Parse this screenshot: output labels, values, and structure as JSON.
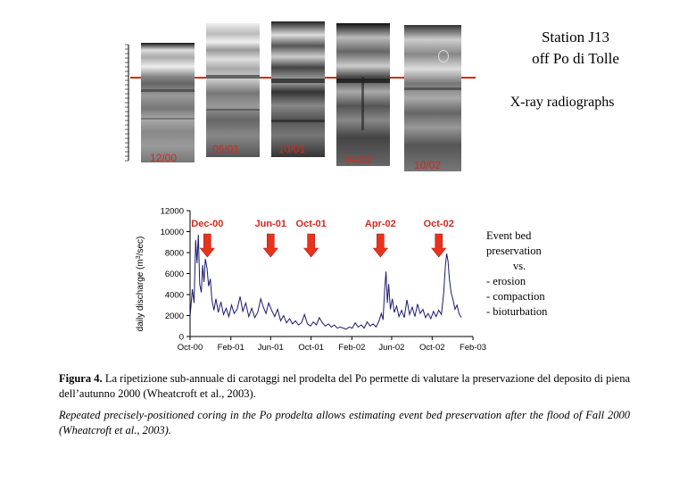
{
  "station": {
    "line1": "Station J13",
    "line2": "off Po di Tolle"
  },
  "xray_title": "X-ray radiographs",
  "cores": [
    {
      "label": "12/00"
    },
    {
      "label": "06/01"
    },
    {
      "label": "10/01"
    },
    {
      "label": "04/02"
    },
    {
      "label": "10/02"
    }
  ],
  "event_note": {
    "lines": [
      "Event bed",
      "preservation",
      "vs.",
      "- erosion",
      "- compaction",
      "- bioturbation"
    ]
  },
  "caption": {
    "bold_prefix": "Figura 4.",
    "italian": "La ripetizione sub-annuale di carotaggi nel prodelta del Po permette di valutare la preservazione del deposito di piena dell’autunno 2000 (Wheatcroft et al., 2003).",
    "english": "Repeated precisely-positioned coring in the Po prodelta allows estimating event bed preservation after the flood of Fall 2000 (Wheatcroft et al., 2003)."
  },
  "colors": {
    "series": "#1a1a6e",
    "arrow": "#e8321e",
    "label_red": "#d42a1f",
    "core_line": "#d42a1f"
  },
  "chart_data": {
    "type": "line",
    "ylabel": "daily discharge (m3/sec)",
    "ylabel_base": "daily discharge (m",
    "ylabel_sup": "3",
    "ylabel_tail": "/sec)",
    "ylim": [
      0,
      12000
    ],
    "yticks": [
      0,
      2000,
      4000,
      6000,
      8000,
      10000,
      12000
    ],
    "xlim": [
      "2000-10-01",
      "2003-02-01"
    ],
    "xticks": [
      {
        "date": "2000-10-01",
        "label": "Oct-00"
      },
      {
        "date": "2001-02-01",
        "label": "Feb-01"
      },
      {
        "date": "2001-06-01",
        "label": "Jun-01"
      },
      {
        "date": "2001-10-01",
        "label": "Oct-01"
      },
      {
        "date": "2002-02-01",
        "label": "Feb-02"
      },
      {
        "date": "2002-06-01",
        "label": "Jun-02"
      },
      {
        "date": "2002-10-01",
        "label": "Oct-02"
      },
      {
        "date": "2003-02-01",
        "label": "Feb-03"
      }
    ],
    "grid": false,
    "series": [
      {
        "values": [
          {
            "x": "2000-10-01",
            "y": 1900
          },
          {
            "x": "2000-10-08",
            "y": 4500
          },
          {
            "x": "2000-10-13",
            "y": 3200
          },
          {
            "x": "2000-10-18",
            "y": 9200
          },
          {
            "x": "2000-10-22",
            "y": 7000
          },
          {
            "x": "2000-10-26",
            "y": 9700
          },
          {
            "x": "2000-10-30",
            "y": 5000
          },
          {
            "x": "2000-11-04",
            "y": 4200
          },
          {
            "x": "2000-11-08",
            "y": 6800
          },
          {
            "x": "2000-11-12",
            "y": 5200
          },
          {
            "x": "2000-11-16",
            "y": 7400
          },
          {
            "x": "2000-11-21",
            "y": 6500
          },
          {
            "x": "2000-11-26",
            "y": 4800
          },
          {
            "x": "2000-12-01",
            "y": 5500
          },
          {
            "x": "2000-12-06",
            "y": 3500
          },
          {
            "x": "2000-12-12",
            "y": 2500
          },
          {
            "x": "2000-12-18",
            "y": 3600
          },
          {
            "x": "2000-12-25",
            "y": 2300
          },
          {
            "x": "2001-01-02",
            "y": 3300
          },
          {
            "x": "2001-01-10",
            "y": 2100
          },
          {
            "x": "2001-01-18",
            "y": 2700
          },
          {
            "x": "2001-01-26",
            "y": 1900
          },
          {
            "x": "2001-02-03",
            "y": 3000
          },
          {
            "x": "2001-02-11",
            "y": 2200
          },
          {
            "x": "2001-02-20",
            "y": 2600
          },
          {
            "x": "2001-03-01",
            "y": 3800
          },
          {
            "x": "2001-03-09",
            "y": 2400
          },
          {
            "x": "2001-03-18",
            "y": 3200
          },
          {
            "x": "2001-03-27",
            "y": 1900
          },
          {
            "x": "2001-04-05",
            "y": 2700
          },
          {
            "x": "2001-04-14",
            "y": 1800
          },
          {
            "x": "2001-04-23",
            "y": 2300
          },
          {
            "x": "2001-05-02",
            "y": 3600
          },
          {
            "x": "2001-05-10",
            "y": 2800
          },
          {
            "x": "2001-05-18",
            "y": 2200
          },
          {
            "x": "2001-05-26",
            "y": 3200
          },
          {
            "x": "2001-06-04",
            "y": 2500
          },
          {
            "x": "2001-06-13",
            "y": 1900
          },
          {
            "x": "2001-06-22",
            "y": 2600
          },
          {
            "x": "2001-07-01",
            "y": 1500
          },
          {
            "x": "2001-07-10",
            "y": 2000
          },
          {
            "x": "2001-07-19",
            "y": 1300
          },
          {
            "x": "2001-07-28",
            "y": 1700
          },
          {
            "x": "2001-08-06",
            "y": 1200
          },
          {
            "x": "2001-08-15",
            "y": 1500
          },
          {
            "x": "2001-08-24",
            "y": 1100
          },
          {
            "x": "2001-09-02",
            "y": 1300
          },
          {
            "x": "2001-09-11",
            "y": 2100
          },
          {
            "x": "2001-09-20",
            "y": 1200
          },
          {
            "x": "2001-09-29",
            "y": 1000
          },
          {
            "x": "2001-10-08",
            "y": 1400
          },
          {
            "x": "2001-10-17",
            "y": 1100
          },
          {
            "x": "2001-10-26",
            "y": 1800
          },
          {
            "x": "2001-11-04",
            "y": 1300
          },
          {
            "x": "2001-11-13",
            "y": 1000
          },
          {
            "x": "2001-11-22",
            "y": 1200
          },
          {
            "x": "2001-12-01",
            "y": 900
          },
          {
            "x": "2001-12-10",
            "y": 1100
          },
          {
            "x": "2001-12-19",
            "y": 800
          },
          {
            "x": "2001-12-28",
            "y": 900
          },
          {
            "x": "2002-01-06",
            "y": 800
          },
          {
            "x": "2002-01-15",
            "y": 700
          },
          {
            "x": "2002-01-24",
            "y": 900
          },
          {
            "x": "2002-02-02",
            "y": 800
          },
          {
            "x": "2002-02-11",
            "y": 1300
          },
          {
            "x": "2002-02-20",
            "y": 900
          },
          {
            "x": "2002-03-01",
            "y": 1100
          },
          {
            "x": "2002-03-10",
            "y": 800
          },
          {
            "x": "2002-03-19",
            "y": 1400
          },
          {
            "x": "2002-03-28",
            "y": 1000
          },
          {
            "x": "2002-04-06",
            "y": 1200
          },
          {
            "x": "2002-04-15",
            "y": 900
          },
          {
            "x": "2002-04-24",
            "y": 1500
          },
          {
            "x": "2002-05-01",
            "y": 2200
          },
          {
            "x": "2002-05-06",
            "y": 1600
          },
          {
            "x": "2002-05-11",
            "y": 4500
          },
          {
            "x": "2002-05-15",
            "y": 6200
          },
          {
            "x": "2002-05-19",
            "y": 3200
          },
          {
            "x": "2002-05-23",
            "y": 5000
          },
          {
            "x": "2002-05-28",
            "y": 2600
          },
          {
            "x": "2002-06-03",
            "y": 3600
          },
          {
            "x": "2002-06-09",
            "y": 2300
          },
          {
            "x": "2002-06-16",
            "y": 2900
          },
          {
            "x": "2002-06-23",
            "y": 1900
          },
          {
            "x": "2002-07-01",
            "y": 2500
          },
          {
            "x": "2002-07-09",
            "y": 1800
          },
          {
            "x": "2002-07-17",
            "y": 3500
          },
          {
            "x": "2002-07-25",
            "y": 2100
          },
          {
            "x": "2002-08-02",
            "y": 2800
          },
          {
            "x": "2002-08-10",
            "y": 1900
          },
          {
            "x": "2002-08-18",
            "y": 3100
          },
          {
            "x": "2002-08-26",
            "y": 2200
          },
          {
            "x": "2002-09-03",
            "y": 2600
          },
          {
            "x": "2002-09-11",
            "y": 1800
          },
          {
            "x": "2002-09-19",
            "y": 2200
          },
          {
            "x": "2002-09-27",
            "y": 1700
          },
          {
            "x": "2002-10-05",
            "y": 2400
          },
          {
            "x": "2002-10-13",
            "y": 1900
          },
          {
            "x": "2002-10-21",
            "y": 2500
          },
          {
            "x": "2002-10-29",
            "y": 2100
          },
          {
            "x": "2002-11-05",
            "y": 4200
          },
          {
            "x": "2002-11-10",
            "y": 6800
          },
          {
            "x": "2002-11-14",
            "y": 7900
          },
          {
            "x": "2002-11-18",
            "y": 7200
          },
          {
            "x": "2002-11-22",
            "y": 5500
          },
          {
            "x": "2002-11-27",
            "y": 4200
          },
          {
            "x": "2002-12-03",
            "y": 3500
          },
          {
            "x": "2002-12-09",
            "y": 2600
          },
          {
            "x": "2002-12-15",
            "y": 3000
          },
          {
            "x": "2002-12-21",
            "y": 2200
          },
          {
            "x": "2002-12-28",
            "y": 1800
          }
        ]
      }
    ],
    "annotations": [
      {
        "label": "Dec-00",
        "date": "2000-11-22"
      },
      {
        "label": "Jun-01",
        "date": "2001-06-01"
      },
      {
        "label": "Oct-01",
        "date": "2001-10-01"
      },
      {
        "label": "Apr-02",
        "date": "2002-04-28"
      },
      {
        "label": "Oct-02",
        "date": "2002-10-21"
      }
    ]
  }
}
